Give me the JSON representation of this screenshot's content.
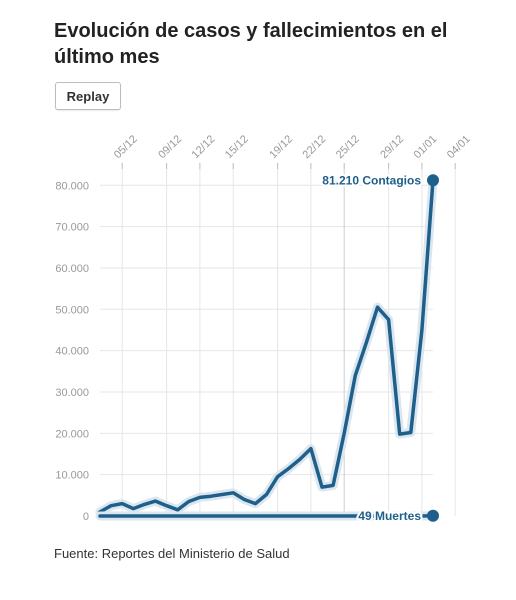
{
  "header": {
    "title": "Evolución de casos y fallecimientos en el último mes",
    "replay_label": "Replay"
  },
  "footer": {
    "source": "Fuente: Reportes del Ministerio de Salud"
  },
  "colors": {
    "line": "#1f5f8b",
    "halo": "#dbe6ef",
    "grid": "#e6e6e6",
    "axis_text": "#999999",
    "label": "#1f5f8b"
  },
  "chart_data": {
    "type": "line",
    "x_tick_labels": [
      "05/12",
      "09/12",
      "12/12",
      "15/12",
      "19/12",
      "22/12",
      "25/12",
      "29/12",
      "01/01",
      "04/01"
    ],
    "x_tick_index": [
      2,
      6,
      9,
      12,
      16,
      19,
      22,
      26,
      29,
      32
    ],
    "y_ticks": [
      0,
      10000,
      20000,
      30000,
      40000,
      50000,
      60000,
      70000,
      80000
    ],
    "y_tick_labels": [
      "0",
      "10.000",
      "20.000",
      "30.000",
      "40.000",
      "50.000",
      "60.000",
      "70.000",
      "80.000"
    ],
    "ylim": [
      0,
      82000
    ],
    "highlight_tick": "25/12",
    "series": [
      {
        "name": "Contagios",
        "values": [
          1000,
          2500,
          3000,
          1800,
          2800,
          3600,
          2500,
          1500,
          3500,
          4500,
          4800,
          5200,
          5600,
          4000,
          3000,
          5200,
          9500,
          11500,
          13700,
          16300,
          7000,
          7400,
          20000,
          34000,
          42000,
          50500,
          47500,
          19800,
          20200,
          45000,
          81210
        ],
        "end_label": "81.210 Contagios"
      },
      {
        "name": "Muertes",
        "values": [
          10,
          10,
          10,
          10,
          10,
          10,
          10,
          10,
          10,
          10,
          10,
          10,
          10,
          10,
          10,
          10,
          10,
          10,
          10,
          10,
          10,
          10,
          10,
          10,
          10,
          10,
          10,
          10,
          10,
          10,
          49
        ],
        "end_label": "49 Muertes"
      }
    ]
  }
}
